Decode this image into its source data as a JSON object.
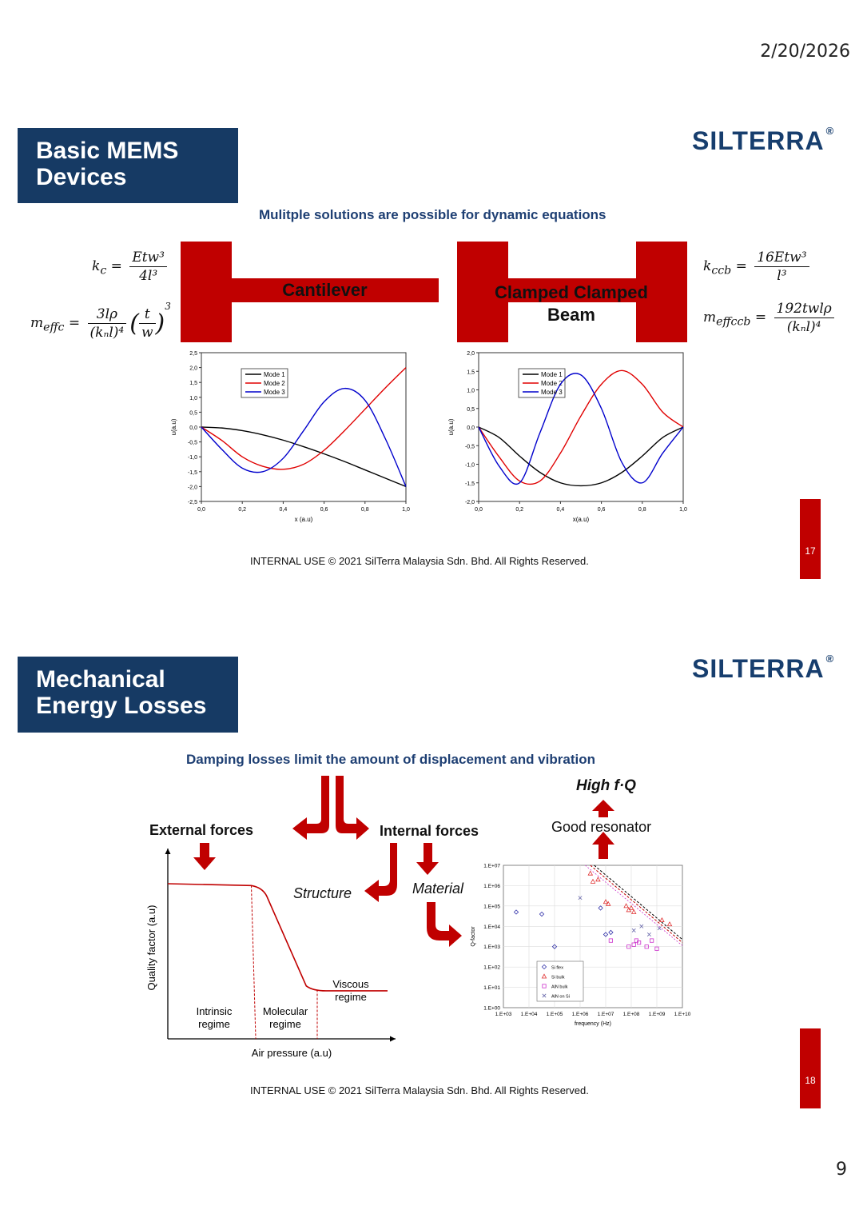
{
  "header": {
    "date": "2/20/2026"
  },
  "page_number": "9",
  "logo": {
    "text": "SILTERRA",
    "mark": "®"
  },
  "footer": "INTERNAL USE   © 2021  SilTerra Malaysia Sdn. Bhd. All Rights Reserved.",
  "slide17": {
    "number": "17",
    "title_line1": "Basic MEMS",
    "title_line2": "Devices",
    "subtitle": "Mulitple solutions are possible for dynamic equations",
    "cantilever_label": "Cantilever",
    "clamped_label_line1": "Clamped Clamped",
    "clamped_label_line2": "Beam",
    "formulas": {
      "kc_lhs": "k",
      "kc_sub": "c",
      "kc_num": "Etw³",
      "kc_den": "4l³",
      "meff_lhs": "m",
      "meff_sub": "effc",
      "meff_num": "3lρ",
      "meff_den": "(kₙl)⁴",
      "meff_paren_num": "t",
      "meff_paren_den": "w",
      "meff_paren_exp": "3",
      "kccb_lhs": "k",
      "kccb_sub": "ccb",
      "kccb_num": "16Etw³",
      "kccb_den": "l³",
      "meffccb_lhs": "m",
      "meffccb_sub": "effccb",
      "meffccb_num": "192twlρ",
      "meffccb_den": "(kₙl)⁴"
    }
  },
  "chart_data": [
    {
      "type": "line",
      "title": "",
      "xlabel": "x (a.u)",
      "ylabel": "u(a.u)",
      "xlim": [
        0,
        1
      ],
      "ylim": [
        -2.5,
        2.5
      ],
      "x_ticks": [
        "0,0",
        "0,2",
        "0,4",
        "0,6",
        "0,8",
        "1,0"
      ],
      "y_ticks": [
        "2,5",
        "2,0",
        "1,5",
        "1,0",
        "0,5",
        "0,0",
        "-0,5",
        "-1,0",
        "-1,5",
        "-2,0",
        "-2,5"
      ],
      "legend_position": "top-left",
      "series": [
        {
          "name": "Mode 1",
          "color": "#000000",
          "x": [
            0,
            0.1,
            0.2,
            0.3,
            0.4,
            0.5,
            0.6,
            0.7,
            0.8,
            0.9,
            1.0
          ],
          "values": [
            0,
            -0.03,
            -0.12,
            -0.26,
            -0.44,
            -0.66,
            -0.9,
            -1.16,
            -1.44,
            -1.72,
            -2.0
          ]
        },
        {
          "name": "Mode 2",
          "color": "#e00000",
          "x": [
            0,
            0.1,
            0.2,
            0.3,
            0.4,
            0.5,
            0.6,
            0.7,
            0.8,
            0.9,
            1.0
          ],
          "values": [
            0,
            -0.45,
            -1.0,
            -1.32,
            -1.42,
            -1.25,
            -0.78,
            -0.12,
            0.6,
            1.32,
            2.0
          ]
        },
        {
          "name": "Mode 3",
          "color": "#0000cc",
          "x": [
            0,
            0.1,
            0.2,
            0.3,
            0.4,
            0.5,
            0.6,
            0.7,
            0.8,
            0.9,
            1.0
          ],
          "values": [
            0,
            -0.75,
            -1.38,
            -1.5,
            -1.05,
            -0.12,
            0.85,
            1.3,
            0.9,
            -0.4,
            -2.0
          ]
        }
      ]
    },
    {
      "type": "line",
      "title": "",
      "xlabel": "x(a.u)",
      "ylabel": "u(a.u)",
      "xlim": [
        0,
        1
      ],
      "ylim": [
        -2.0,
        2.0
      ],
      "x_ticks": [
        "0,0",
        "0,2",
        "0,4",
        "0,6",
        "0,8",
        "1,0"
      ],
      "y_ticks": [
        "2,0",
        "1,5",
        "1,0",
        "0,5",
        "0,0",
        "-0,5",
        "-1,0",
        "-1,5",
        "-2,0"
      ],
      "legend_position": "top-left",
      "series": [
        {
          "name": "Mode 1",
          "color": "#000000",
          "x": [
            0,
            0.1,
            0.2,
            0.3,
            0.4,
            0.5,
            0.6,
            0.7,
            0.8,
            0.9,
            1.0
          ],
          "values": [
            0,
            -0.28,
            -0.78,
            -1.22,
            -1.5,
            -1.58,
            -1.5,
            -1.22,
            -0.78,
            -0.28,
            0
          ]
        },
        {
          "name": "Mode 2",
          "color": "#e00000",
          "x": [
            0,
            0.1,
            0.2,
            0.3,
            0.4,
            0.5,
            0.6,
            0.7,
            0.8,
            0.9,
            1.0
          ],
          "values": [
            0,
            -0.8,
            -1.45,
            -1.45,
            -0.7,
            0.3,
            1.15,
            1.52,
            1.15,
            0.4,
            0
          ]
        },
        {
          "name": "Mode 3",
          "color": "#0000cc",
          "x": [
            0,
            0.1,
            0.2,
            0.3,
            0.4,
            0.5,
            0.6,
            0.7,
            0.8,
            0.9,
            1.0
          ],
          "values": [
            0,
            -1.05,
            -1.5,
            -0.15,
            1.15,
            1.4,
            0.5,
            -0.95,
            -1.5,
            -0.7,
            0
          ]
        }
      ]
    },
    {
      "type": "line",
      "title": "",
      "xlabel": "Air pressure (a.u)",
      "ylabel": "Quality factor (a.u)",
      "regions": [
        "Intrinsic regime",
        "Molecular regime",
        "Viscous regime"
      ],
      "x_ticks": [],
      "y_ticks": [],
      "series": [
        {
          "name": "",
          "color": "#c00000",
          "x": [
            0,
            0.38,
            0.6,
            0.65,
            1.0
          ],
          "values": [
            1.0,
            0.97,
            0.2,
            0.14,
            0.14
          ]
        }
      ]
    },
    {
      "type": "scatter",
      "title": "",
      "xlabel": "frequency (Hz)",
      "ylabel": "Q-factor",
      "x_scale": "log",
      "y_scale": "log",
      "x_ticks": [
        "1.E+03",
        "1.E+04",
        "1.E+05",
        "1.E+06",
        "1.E+07",
        "1.E+08",
        "1.E+09",
        "1.E+10"
      ],
      "y_ticks": [
        "1.E+07",
        "1.E+06",
        "1.E+05",
        "1.E+04",
        "1.E+03",
        "1.E+02",
        "1.E+01",
        "1.E+00"
      ],
      "legend_position": "bottom-center",
      "series": [
        {
          "name": "Si flex",
          "color": "#3333aa",
          "marker": "diamond",
          "x": [
            3.5,
            4.5,
            5.0,
            6.8,
            7.0,
            7.2
          ],
          "values": [
            4.7,
            4.6,
            3.0,
            4.9,
            3.6,
            3.7
          ]
        },
        {
          "name": "Si bulk",
          "color": "#e03030",
          "marker": "triangle",
          "x": [
            6.4,
            6.5,
            6.7,
            7.0,
            7.1,
            7.8,
            7.9,
            8.0,
            8.1,
            9.2,
            9.5
          ],
          "values": [
            6.6,
            6.2,
            6.3,
            5.2,
            5.1,
            5.0,
            4.8,
            4.9,
            4.7,
            4.3,
            4.1
          ]
        },
        {
          "name": "AlN bulk",
          "color": "#cc33cc",
          "marker": "square",
          "x": [
            7.2,
            7.9,
            8.1,
            8.2,
            8.3,
            8.6,
            8.8,
            9.0
          ],
          "values": [
            3.3,
            3.0,
            3.1,
            3.3,
            3.2,
            3.0,
            3.3,
            2.9
          ]
        },
        {
          "name": "AlN on Si",
          "color": "#6666aa",
          "marker": "x",
          "x": [
            6.0,
            8.1,
            8.4,
            8.7,
            9.1
          ],
          "values": [
            5.4,
            3.8,
            4.0,
            3.6,
            3.9
          ]
        }
      ]
    }
  ],
  "slide18": {
    "number": "18",
    "title_line1": "Mechanical",
    "title_line2": "Energy Losses",
    "subtitle": "Damping losses limit the amount of displacement and vibration",
    "external_forces": "External forces",
    "internal_forces": "Internal forces",
    "structure": "Structure",
    "material": "Material",
    "high_fq": "High f·Q",
    "good_resonator": "Good resonator",
    "regime_intrinsic_1": "Intrinsic",
    "regime_intrinsic_2": "regime",
    "regime_molecular_1": "Molecular",
    "regime_molecular_2": "regime",
    "regime_viscous_1": "Viscous",
    "regime_viscous_2": "regime",
    "axis_x": "Air pressure (a.u)",
    "axis_y": "Quality factor (a.u)"
  },
  "colors": {
    "accent_red": "#c00000",
    "navy": "#163a64",
    "subtitle_blue": "#1e3f73"
  }
}
